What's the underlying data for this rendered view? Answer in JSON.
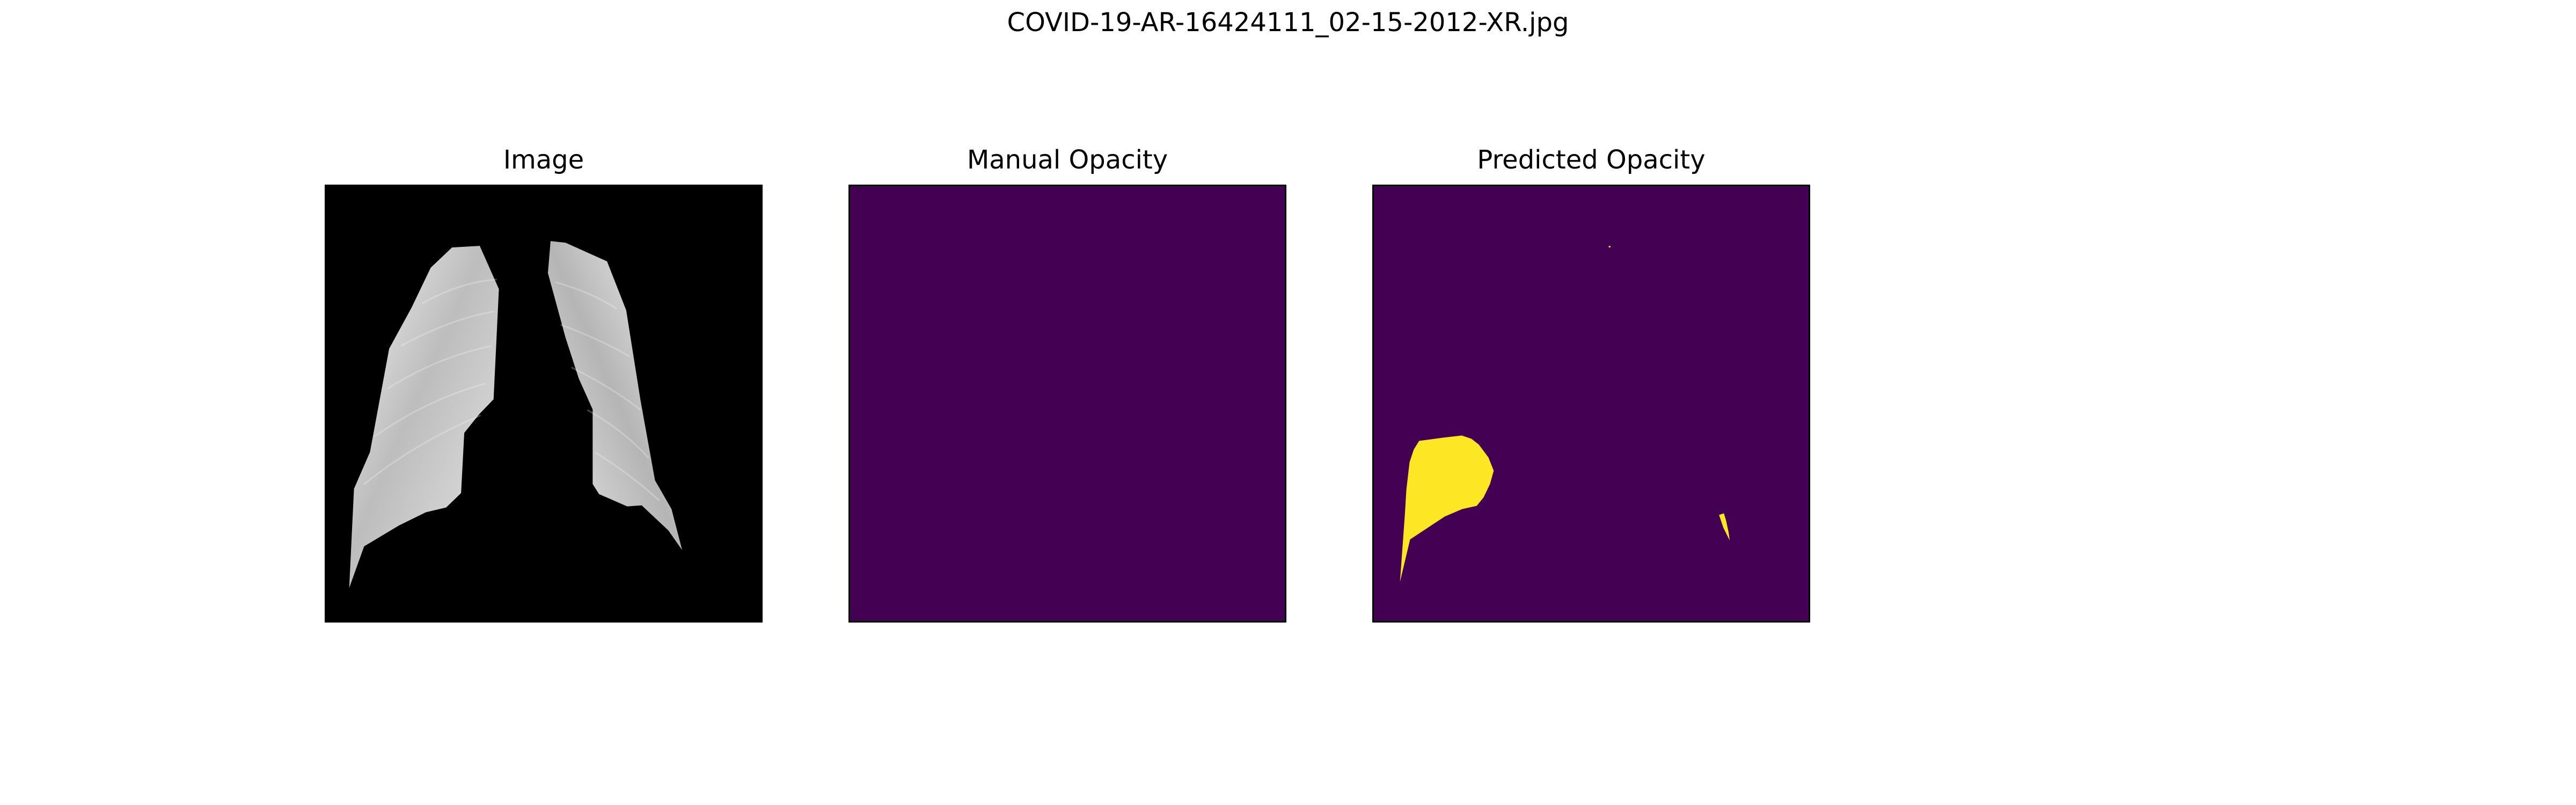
{
  "figure": {
    "title": "COVID-19-AR-16424111_02-15-2012-XR.jpg"
  },
  "panels": [
    {
      "title": "Image",
      "content": "chest x-ray with segmented lungs"
    },
    {
      "title": "Manual Opacity",
      "content": "empty opacity mask"
    },
    {
      "title": "Predicted Opacity",
      "content": "predicted opacity mask"
    }
  ],
  "colors": {
    "background": "#ffffff",
    "mask_background": "#440154",
    "mask_foreground": "#fde725",
    "xray_background": "#000000",
    "frame": "#000000"
  }
}
